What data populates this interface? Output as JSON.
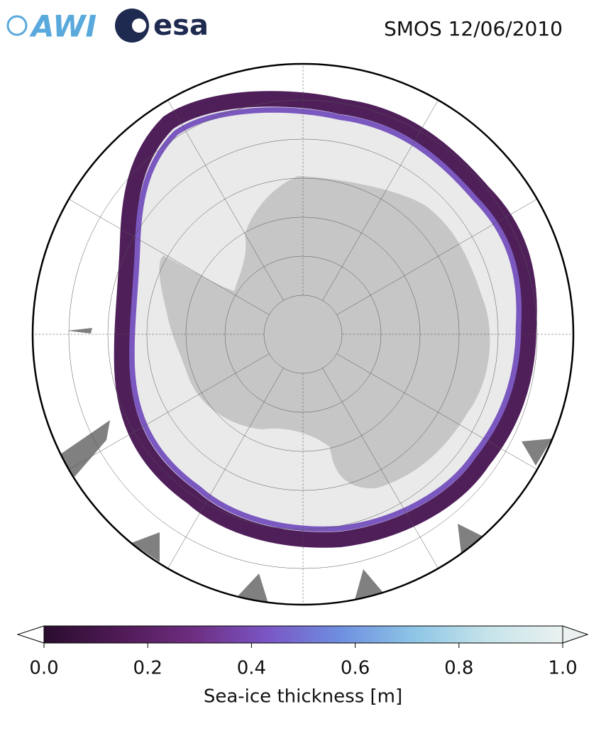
{
  "header": {
    "logos": [
      "AWI",
      "esa"
    ],
    "title": "SMOS 12/06/2010"
  },
  "colorbar": {
    "label": "Sea-ice thickness [m]",
    "lim": [
      0,
      1
    ],
    "ticks": [
      {
        "value": 0,
        "label": "0.0"
      },
      {
        "value": 0.2,
        "label": "0.2"
      },
      {
        "value": 0.4,
        "label": "0.4"
      },
      {
        "value": 0.6,
        "label": "0.6"
      },
      {
        "value": 0.8,
        "label": "0.8"
      },
      {
        "value": 1,
        "label": "1.0"
      }
    ],
    "colormap": [
      "#2a0d2e",
      "#4e1a55",
      "#6e2d80",
      "#7a55c4",
      "#6e8fe0",
      "#8ec6e6",
      "#c6e4ea",
      "#eaf1f0"
    ]
  }
}
